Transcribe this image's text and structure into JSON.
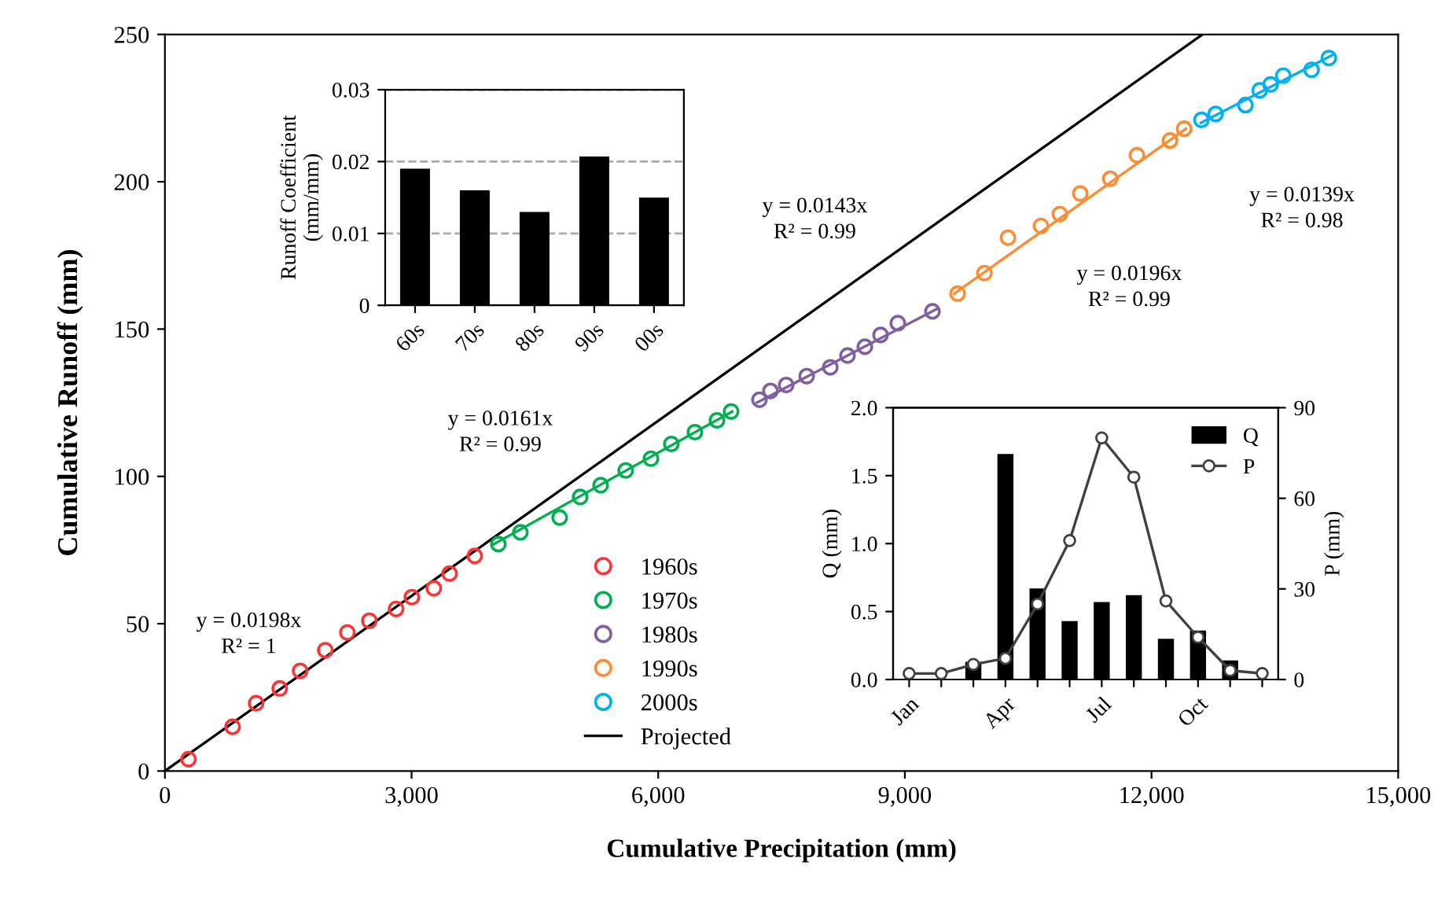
{
  "chart_data": [
    {
      "type": "scatter",
      "xlabel": "Cumulative Precipitation (mm)",
      "ylabel": "Cumulative Runoff (mm)",
      "xlim": [
        0,
        15000
      ],
      "ylim": [
        0,
        250
      ],
      "xticks": [
        0,
        {
          "value": 3000,
          "label": "3,000"
        },
        {
          "value": 6000,
          "label": "6,000"
        },
        {
          "value": 9000,
          "label": "9,000"
        },
        {
          "value": 12000,
          "label": "12,000"
        },
        {
          "value": 15000,
          "label": "15,000"
        }
      ],
      "yticks": [
        0,
        50,
        100,
        150,
        200,
        250
      ],
      "legend": "bottom",
      "grid": false,
      "series": [
        {
          "name": "1960s",
          "marker": "circle",
          "color": "#ff3333",
          "x": [
            287,
            823,
            1110,
            1397,
            1645,
            1951,
            2219,
            2487,
            2812,
            3004,
            3271,
            3463,
            3769
          ],
          "values": [
            4,
            15,
            23,
            28,
            34,
            41,
            47,
            51,
            55,
            59,
            62,
            67,
            73
          ]
        },
        {
          "name": "1970s",
          "marker": "circle",
          "color": "#00b050",
          "x": [
            4056,
            4324,
            4802,
            5051,
            5300,
            5605,
            5912,
            6160,
            6447,
            6715,
            6887
          ],
          "values": [
            77,
            81,
            86,
            93,
            97,
            102,
            106,
            111,
            115,
            119,
            122
          ]
        },
        {
          "name": "1980s",
          "marker": "circle",
          "color": "#7f5f9f",
          "x": [
            7232,
            7366,
            7557,
            7806,
            8093,
            8303,
            8514,
            8705,
            8915,
            9336
          ],
          "values": [
            126,
            129,
            131,
            134,
            137,
            141,
            144,
            148,
            152,
            156
          ]
        },
        {
          "name": "1990s",
          "marker": "circle",
          "color": "#ff8c33",
          "x": [
            9642,
            9968,
            10255,
            10656,
            10886,
            11134,
            11498,
            11823,
            12225,
            12397
          ],
          "values": [
            162,
            169,
            181,
            185,
            189,
            196,
            201,
            209,
            214,
            218
          ]
        },
        {
          "name": "2000s",
          "marker": "circle",
          "color": "#00b0f0",
          "x": [
            12608,
            12780,
            13143,
            13316,
            13449,
            13603,
            13947,
            14157
          ],
          "values": [
            221,
            223,
            226,
            231,
            233,
            236,
            238,
            242
          ]
        },
        {
          "name": "Projected",
          "type": "line",
          "color": "#000000",
          "x": [
            0,
            12620
          ],
          "values": [
            0,
            250
          ]
        },
        {
          "type": "line",
          "color": "#00b050",
          "x": [
            4000,
            6900
          ],
          "values": [
            77,
            122
          ]
        },
        {
          "type": "line",
          "color": "#7f5f9f",
          "x": [
            7200,
            9400
          ],
          "values": [
            125,
            157
          ]
        },
        {
          "type": "line",
          "color": "#ff8c33",
          "x": [
            9600,
            12420
          ],
          "values": [
            162,
            218
          ]
        },
        {
          "type": "line",
          "color": "#00b0f0",
          "x": [
            12600,
            14200
          ],
          "values": [
            220,
            243
          ]
        }
      ],
      "annotations": [
        "y = 0.0198x\nR² = 1",
        "y = 0.0161x\nR² = 0.99",
        "y = 0.0143x\nR² = 0.99",
        "y = 0.0196x\nR² = 0.99",
        "y = 0.0139x\nR² = 0.98"
      ]
    },
    {
      "type": "bar",
      "ylabel": "Runoff Coefficient\n(mm/mm)",
      "categories": [
        "60s",
        "70s",
        "80s",
        "90s",
        "00s"
      ],
      "values": [
        0.019,
        0.016,
        0.013,
        0.0207,
        0.015
      ],
      "color": "#000000",
      "ylim": [
        0,
        0.03
      ],
      "yticks": [
        0,
        0.01,
        0.02,
        0.03
      ],
      "grid": "y",
      "line_style": "dashed"
    },
    {
      "type": "bar",
      "ylabel": "Q (mm)",
      "y2label": "P (mm)",
      "categories": [
        "Jan",
        null,
        null,
        "Apr",
        null,
        null,
        "Jul",
        null,
        null,
        "Oct",
        null,
        null
      ],
      "ylim": [
        0,
        2.0
      ],
      "yticks": [
        {
          "value": 0,
          "label": "0.0"
        },
        {
          "value": 0.5,
          "label": "0.5"
        },
        {
          "value": 1.0,
          "label": "1.0"
        },
        {
          "value": 1.5,
          "label": "1.5"
        },
        {
          "value": 2.0,
          "label": "2.0"
        }
      ],
      "y2lim": [
        0,
        90
      ],
      "y2ticks": [
        0,
        30,
        60,
        90
      ],
      "legend": "top right",
      "grid": false,
      "series": [
        {
          "name": "Q",
          "color": "#000000",
          "values": [
            null,
            null,
            0.13,
            1.66,
            0.67,
            0.43,
            0.57,
            0.62,
            0.3,
            0.36,
            0.14,
            null
          ]
        },
        {
          "name": "P",
          "type": "line",
          "axis": "y2",
          "marker": "circle",
          "color": "#404040",
          "values": [
            2,
            2,
            5,
            7,
            25,
            46,
            80,
            67,
            26,
            14,
            3,
            2
          ]
        }
      ]
    }
  ]
}
